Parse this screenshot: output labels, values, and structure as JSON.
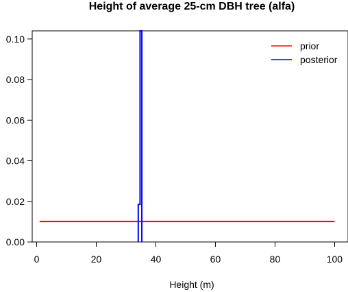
{
  "chart_data": {
    "type": "line",
    "title": "Height of average 25-cm DBH tree (alfa)",
    "xlabel": "Height (m)",
    "ylabel": "",
    "xlim": [
      -1.5,
      104.5
    ],
    "ylim": [
      0.0,
      0.104
    ],
    "x_ticks": [
      0,
      20,
      40,
      60,
      80,
      100
    ],
    "y_ticks": [
      0.0,
      0.02,
      0.04,
      0.06,
      0.08,
      0.1
    ],
    "y_tick_labels": [
      "0.00",
      "0.02",
      "0.04",
      "0.06",
      "0.08",
      "0.10"
    ],
    "legend_position": "top-right",
    "series": [
      {
        "name": "prior",
        "color": "#ff0000",
        "x": [
          1,
          100
        ],
        "y": [
          0.0101,
          0.0101
        ]
      },
      {
        "name": "posterior",
        "color": "#0000ff",
        "x": [
          34.1,
          34.1,
          34.7,
          34.7,
          35.3,
          35.3
        ],
        "y": [
          0.0,
          0.0185,
          0.0185,
          0.104,
          0.104,
          0.0
        ]
      }
    ]
  }
}
